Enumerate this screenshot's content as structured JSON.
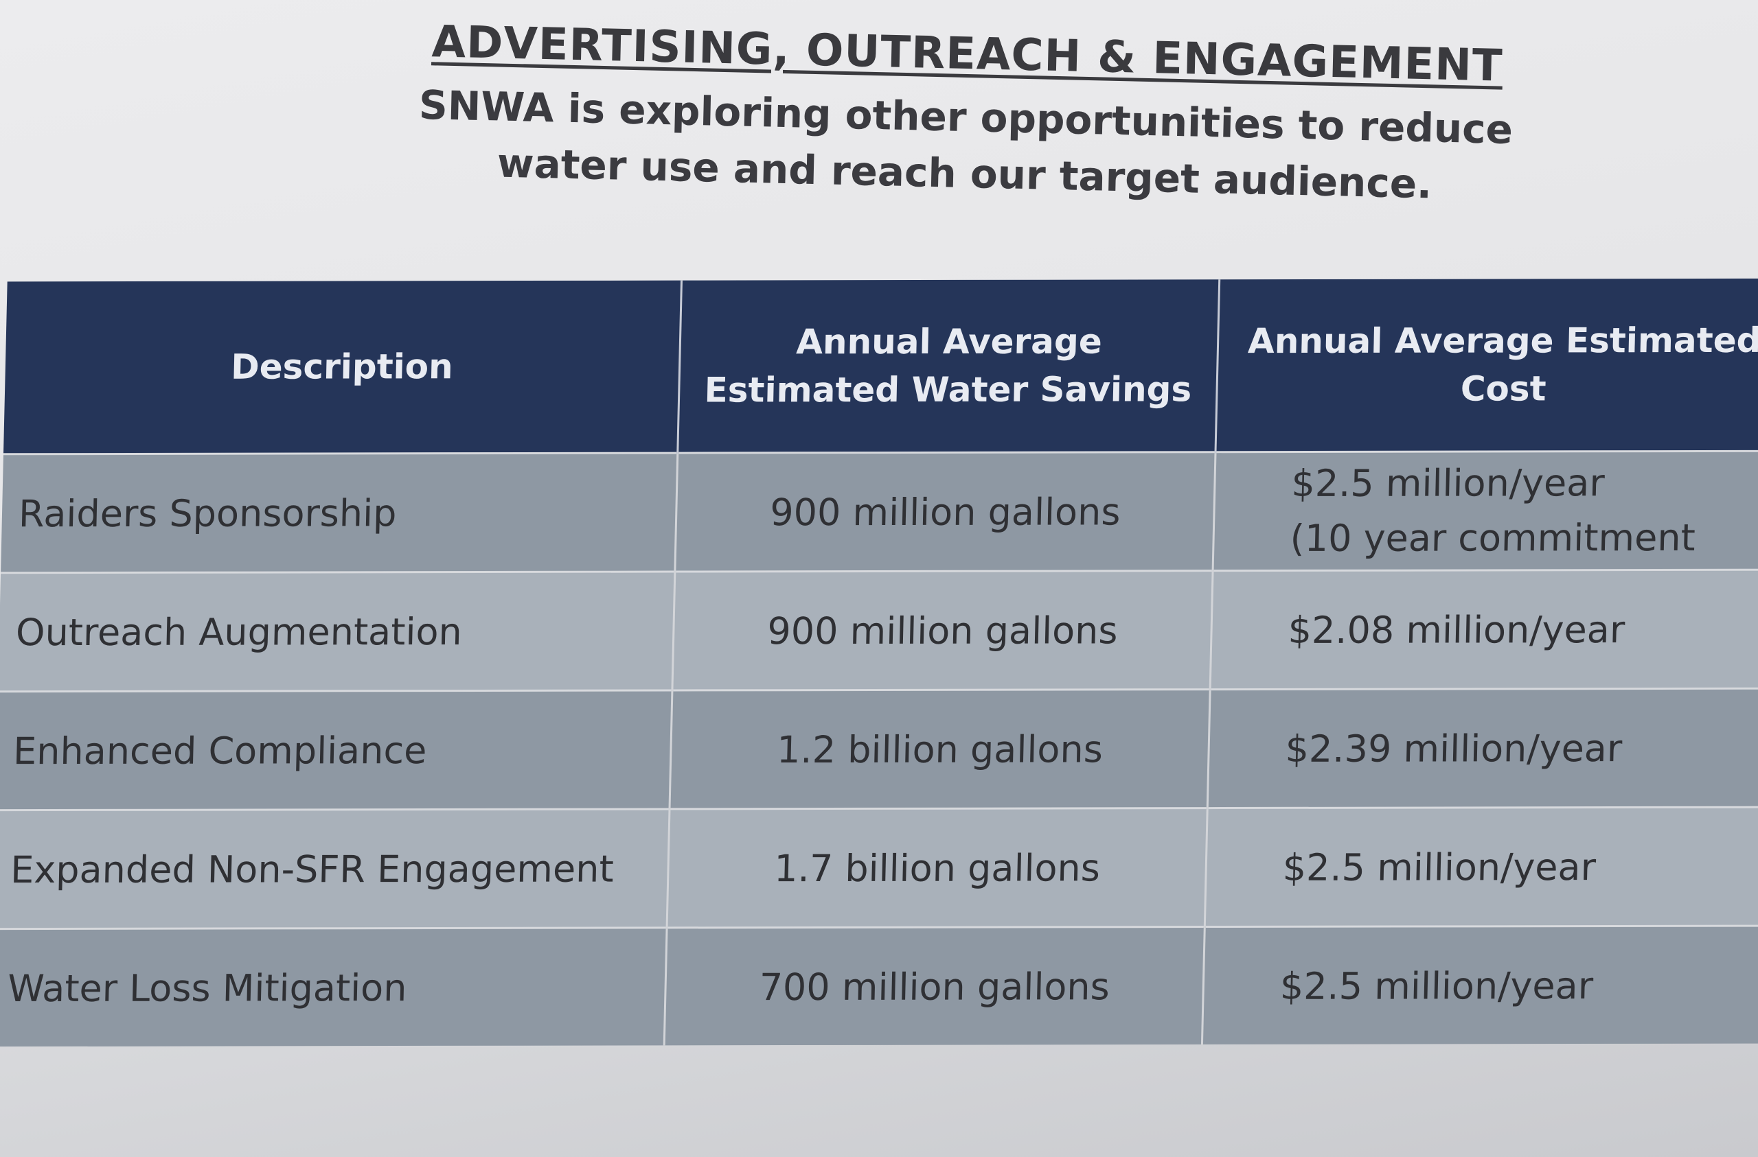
{
  "document": {
    "title": "ADVERTISING, OUTREACH & ENGAGEMENT",
    "subtitle_line1": "SNWA is exploring other opportunities to reduce",
    "subtitle_line2": "water use and reach our target audience."
  },
  "table": {
    "headers": {
      "description": "Description",
      "savings": "Annual Average Estimated Water Savings",
      "cost": "Annual Average Estimated Cost"
    },
    "rows": [
      {
        "description": "Raiders Sponsorship",
        "savings": "900 million gallons",
        "cost": "$2.5 million/year",
        "cost_note": "(10 year commitment"
      },
      {
        "description": "Outreach Augmentation",
        "savings": "900 million gallons",
        "cost": "$2.08 million/year",
        "cost_note": ""
      },
      {
        "description": "Enhanced Compliance",
        "savings": "1.2 billion gallons",
        "cost": "$2.39 million/year",
        "cost_note": ""
      },
      {
        "description": "Expanded Non-SFR Engagement",
        "savings": "1.7 billion gallons",
        "cost": "$2.5 million/year",
        "cost_note": ""
      },
      {
        "description": "Water Loss Mitigation",
        "savings": "700 million gallons",
        "cost": "$2.5 million/year",
        "cost_note": ""
      }
    ]
  }
}
